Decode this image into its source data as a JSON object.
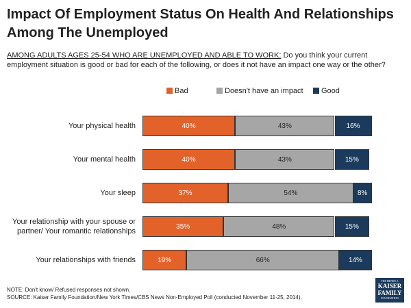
{
  "chart_data": {
    "type": "bar",
    "orientation": "horizontal-stacked",
    "title": "Impact Of Employment Status On Health And Relationships Among The Unemployed",
    "subtitle_prefix": "AMONG ADULTS AGES 25-54 WHO ARE UNEMPLOYED AND ABLE TO WORK:",
    "subtitle_text": " Do you think your current employment situation is good or bad for each of the following, or does it not have an impact one way or the other?",
    "categories": [
      "Your physical health",
      "Your mental health",
      "Your sleep",
      "Your relationship with your spouse or partner/ Your romantic relationships",
      "Your relationships with friends"
    ],
    "series": [
      {
        "name": "Bad",
        "color": "#e3622a",
        "text_color": "#ffffff",
        "values": [
          40,
          40,
          37,
          35,
          19
        ],
        "labels": [
          "40%",
          "40%",
          "37%",
          "35%",
          "19%"
        ]
      },
      {
        "name": "Doesn't have an impact",
        "color": "#a6a6a6",
        "text_color": "#222222",
        "values": [
          43,
          43,
          54,
          48,
          66
        ],
        "labels": [
          "43%",
          "43%",
          "54%",
          "48%",
          "66%"
        ]
      },
      {
        "name": "Good",
        "color": "#1b3a5c",
        "text_color": "#ffffff",
        "values": [
          16,
          15,
          8,
          15,
          14
        ],
        "labels": [
          "16%",
          "15%",
          "8%",
          "15%",
          "14%"
        ]
      }
    ],
    "xlim": [
      0,
      100
    ],
    "legend_position": "top"
  },
  "notes": {
    "note": "NOTE: Don't know/ Refused responses not shown.",
    "source": "SOURCE: Kaiser Family Foundation/New York Times/CBS News Non-Employed Poll (conducted November 11-25, 2014)."
  },
  "logo": {
    "line1": "THE HENRY J.",
    "line2a": "KAISER",
    "line2b": "FAMILY",
    "line3": "FOUNDATION"
  }
}
